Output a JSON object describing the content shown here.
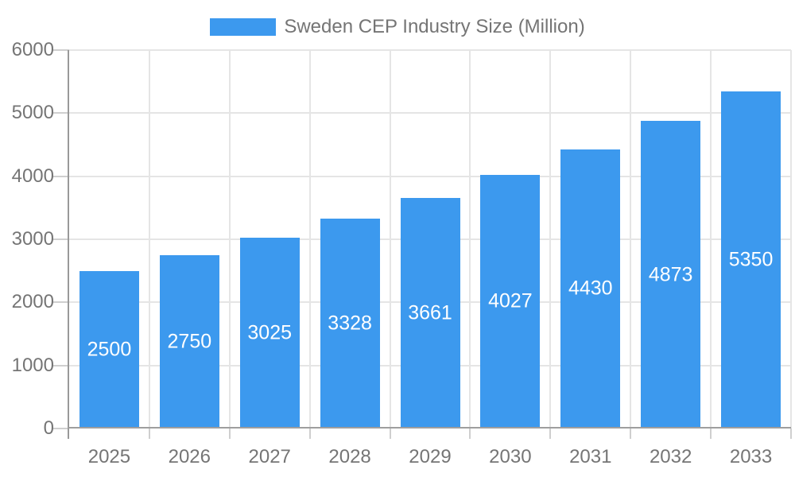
{
  "legend": {
    "label": "Sweden CEP Industry Size (Million)"
  },
  "colors": {
    "bar": "#3C99EE",
    "axis_text": "#757575",
    "value_label": "#FFFFFF",
    "grid": "#E5E5E5",
    "y_axis_line": "#999999",
    "x_axis_line": "#9E9E9E",
    "tick": "#CFCFCF"
  },
  "chart_data": {
    "type": "bar",
    "title": "Sweden CEP Industry Size (Million)",
    "categories": [
      "2025",
      "2026",
      "2027",
      "2028",
      "2029",
      "2030",
      "2031",
      "2032",
      "2033"
    ],
    "values": [
      2500,
      2750,
      3025,
      3328,
      3661,
      4027,
      4430,
      4873,
      5350
    ],
    "series": [
      {
        "name": "Sweden CEP Industry Size (Million)",
        "values": [
          2500,
          2750,
          3025,
          3328,
          3661,
          4027,
          4430,
          4873,
          5350
        ]
      }
    ],
    "xlabel": "",
    "ylabel": "",
    "ylim": [
      0,
      6000
    ],
    "yticks": [
      0,
      1000,
      2000,
      3000,
      4000,
      5000,
      6000
    ],
    "grid": true,
    "legend_position": "top",
    "value_label_position": "inside-center"
  }
}
